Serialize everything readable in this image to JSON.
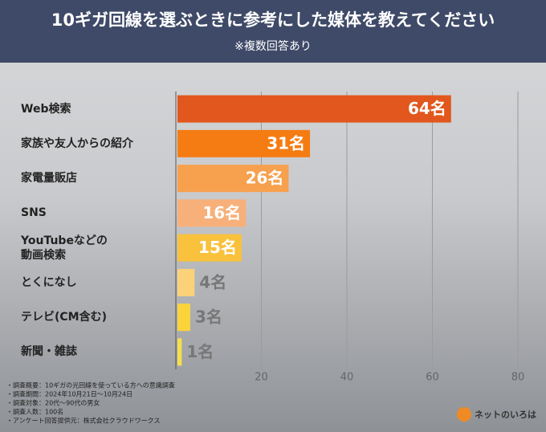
{
  "chart_data": {
    "type": "bar",
    "orientation": "horizontal",
    "title": "10ギガ回線を選ぶときに参考にした媒体を教えてください",
    "subtitle": "※複数回答あり",
    "categories": [
      "Web検索",
      "家族や友人からの紹介",
      "家電量販店",
      "SNS",
      "YouTubeなどの\n動画検索",
      "とくになし",
      "テレビ(CM含む)",
      "新聞・雑誌"
    ],
    "values": [
      64,
      31,
      26,
      16,
      15,
      4,
      3,
      1
    ],
    "value_labels": [
      "64名",
      "31名",
      "26名",
      "16名",
      "15名",
      "4名",
      "3名",
      "1名"
    ],
    "colors": [
      "#e2571d",
      "#f57c12",
      "#f7a04e",
      "#f7b07a",
      "#f9c13c",
      "#fbd27a",
      "#fbd43a",
      "#f5e04a"
    ],
    "xlim": [
      0,
      80
    ],
    "xticks": [
      20,
      40,
      60,
      80
    ],
    "grid": true,
    "notes": [
      "・調査概要：10ギガの光回線を使っている方への意識調査",
      "・調査期間：2024年10月21日〜10月24日",
      "・調査対象：20代〜90代の男女",
      "・調査人数：100名",
      "・アンケート回答提供元：株式会社クラウドワークス"
    ],
    "logo": "ネットのいろは"
  }
}
